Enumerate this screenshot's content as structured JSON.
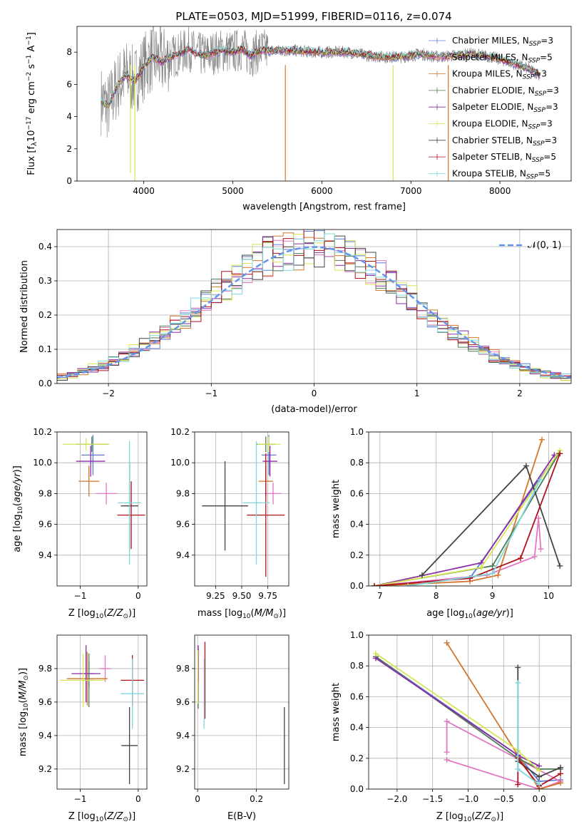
{
  "title": "PLATE=0503, MJD=51999, FIBERID=0116, z=0.074",
  "models": [
    {
      "name": "Chabrier MILES, N",
      "nssp": "3",
      "color": "#5b7fd6"
    },
    {
      "name": "Salpeter MILES, N",
      "nssp": "5",
      "color": "#e377c2"
    },
    {
      "name": "Kroupa MILES, N",
      "nssp": "3",
      "color": "#d4762a"
    },
    {
      "name": "Chabrier ELODIE, N",
      "nssp": "3",
      "color": "#4e7d55"
    },
    {
      "name": "Salpeter ELODIE, N",
      "nssp": "3",
      "color": "#8b2ea3"
    },
    {
      "name": "Kroupa ELODIE, N",
      "nssp": "3",
      "color": "#d8e653"
    },
    {
      "name": "Chabrier STELIB, N",
      "nssp": "3",
      "color": "#444444"
    },
    {
      "name": "Salpeter STELIB, N",
      "nssp": "5",
      "color": "#b0111b"
    },
    {
      "name": "Kroupa STELIB, N",
      "nssp": "5",
      "color": "#7fd8dc"
    }
  ],
  "chart_data": [
    {
      "id": "spectrum",
      "type": "line",
      "xlabel": "wavelength [Angstrom, rest frame]",
      "ylabel": "Flux [f",
      "xlim": [
        3250,
        8800
      ],
      "ylim": [
        0,
        9.6
      ],
      "xticks": [
        4000,
        5000,
        6000,
        7000,
        8000
      ],
      "yticks": [
        0,
        2,
        4,
        6,
        8
      ],
      "data_color": "#7f7f7f",
      "data_points": [
        [
          3520,
          5.0
        ],
        [
          3600,
          4.6
        ],
        [
          3700,
          5.9
        ],
        [
          3800,
          6.6
        ],
        [
          3900,
          6.2
        ],
        [
          4000,
          7.1
        ],
        [
          4100,
          7.7
        ],
        [
          4200,
          7.4
        ],
        [
          4300,
          7.7
        ],
        [
          4400,
          7.9
        ],
        [
          4500,
          8.2
        ],
        [
          4600,
          7.9
        ],
        [
          4700,
          7.8
        ],
        [
          4800,
          8.0
        ],
        [
          4900,
          8.1
        ],
        [
          5000,
          8.0
        ],
        [
          5100,
          8.2
        ],
        [
          5200,
          7.8
        ],
        [
          5300,
          8.1
        ],
        [
          5500,
          8.1
        ],
        [
          5700,
          8.1
        ],
        [
          5900,
          8.0
        ],
        [
          6100,
          8.0
        ],
        [
          6300,
          8.0
        ],
        [
          6500,
          7.8
        ],
        [
          6700,
          7.7
        ],
        [
          6900,
          7.7
        ],
        [
          7100,
          7.9
        ],
        [
          7300,
          7.7
        ],
        [
          7500,
          7.8
        ],
        [
          7700,
          7.9
        ],
        [
          7900,
          7.7
        ],
        [
          8100,
          7.4
        ],
        [
          8300,
          7.0
        ],
        [
          8450,
          6.6
        ]
      ],
      "spikes": [
        [
          3850,
          0.5
        ],
        [
          3900,
          0
        ],
        [
          5590,
          0
        ],
        [
          6800,
          0
        ],
        [
          7420,
          0
        ]
      ]
    },
    {
      "id": "residuals",
      "type": "line",
      "xlabel": "(data-model)/error",
      "ylabel": "Normed distribution",
      "xlim": [
        -2.5,
        2.5
      ],
      "ylim": [
        0,
        0.45
      ],
      "xticks": [
        -2,
        -1,
        0,
        1,
        2
      ],
      "yticks": [
        0,
        0.1,
        0.2,
        0.3,
        0.4
      ],
      "legend": "𝒩(0, 1)",
      "grid": true
    },
    {
      "id": "age_vs_Z",
      "type": "scatter",
      "xlabel": "Z [log",
      "ylabel": "age  [log",
      "xlim": [
        -1.4,
        0.15
      ],
      "ylim": [
        9.2,
        10.2
      ],
      "xticks": [
        -1,
        0
      ],
      "yticks": [
        9.4,
        9.6,
        9.8,
        10.0,
        10.2
      ],
      "points": [
        {
          "x": -0.78,
          "y": 10.05,
          "xerr": 0.2,
          "yerr": 0.13,
          "c": 0
        },
        {
          "x": -0.55,
          "y": 9.8,
          "xerr": 0.18,
          "yerr": 0.07,
          "c": 1
        },
        {
          "x": -0.85,
          "y": 9.88,
          "xerr": 0.18,
          "yerr": 0.1,
          "c": 2
        },
        {
          "x": -0.8,
          "y": 10.12,
          "xerr": 0.28,
          "yerr": 0.05,
          "c": 3
        },
        {
          "x": -0.82,
          "y": 10.01,
          "xerr": 0.25,
          "yerr": 0.1,
          "c": 4
        },
        {
          "x": -0.9,
          "y": 10.12,
          "xerr": 0.4,
          "yerr": 0.04,
          "c": 5
        },
        {
          "x": -0.15,
          "y": 9.72,
          "xerr": 0.15,
          "yerr": 0.29,
          "c": 6
        },
        {
          "x": -0.12,
          "y": 9.66,
          "xerr": 0.24,
          "yerr": 0.22,
          "c": 7
        },
        {
          "x": -0.15,
          "y": 9.74,
          "xerr": 0.2,
          "yerr": 0.4,
          "c": 8
        }
      ]
    },
    {
      "id": "age_vs_mass",
      "type": "scatter",
      "xlabel": "mass [log",
      "ylabel": "",
      "xlim": [
        9.05,
        9.95
      ],
      "ylim": [
        9.2,
        10.2
      ],
      "xticks": [
        9.25,
        9.5,
        9.75
      ],
      "xticklabels": [
        "9.25",
        "9.50",
        "9.75"
      ],
      "yticks": [
        9.4,
        9.6,
        9.8,
        10.0,
        10.2
      ],
      "points": [
        {
          "x": 9.76,
          "y": 10.05,
          "xerr": 0.07,
          "yerr": 0.13,
          "c": 0
        },
        {
          "x": 9.8,
          "y": 9.8,
          "xerr": 0.08,
          "yerr": 0.07,
          "c": 1
        },
        {
          "x": 9.73,
          "y": 9.88,
          "xerr": 0.07,
          "yerr": 0.1,
          "c": 2
        },
        {
          "x": 9.73,
          "y": 10.12,
          "xerr": 0.09,
          "yerr": 0.05,
          "c": 3
        },
        {
          "x": 9.77,
          "y": 10.01,
          "xerr": 0.07,
          "yerr": 0.1,
          "c": 4
        },
        {
          "x": 9.76,
          "y": 10.12,
          "xerr": 0.11,
          "yerr": 0.05,
          "c": 5
        },
        {
          "x": 9.34,
          "y": 9.72,
          "xerr": 0.22,
          "yerr": 0.29,
          "c": 6
        },
        {
          "x": 9.73,
          "y": 9.66,
          "xerr": 0.18,
          "yerr": 0.4,
          "c": 7
        },
        {
          "x": 9.64,
          "y": 9.74,
          "xerr": 0.13,
          "yerr": 0.4,
          "c": 8
        }
      ]
    },
    {
      "id": "weight_vs_age",
      "type": "line",
      "xlabel": "age  [log",
      "ylabel": "mass weight",
      "xlim": [
        6.8,
        10.4
      ],
      "ylim": [
        0,
        1
      ],
      "xticks": [
        7,
        8,
        9,
        10
      ],
      "yticks": [
        0,
        0.2,
        0.4,
        0.6,
        0.8,
        1.0
      ],
      "series": [
        {
          "c": 0,
          "pts": [
            [
              6.9,
              0.0
            ],
            [
              8.6,
              0.05
            ],
            [
              9.75,
              0.65
            ],
            [
              10.18,
              0.86
            ]
          ]
        },
        {
          "c": 1,
          "pts": [
            [
              6.9,
              0.0
            ],
            [
              8.9,
              0.07
            ],
            [
              9.75,
              0.19
            ],
            [
              9.82,
              0.44
            ],
            [
              9.86,
              0.24
            ]
          ]
        },
        {
          "c": 2,
          "pts": [
            [
              6.9,
              0.0
            ],
            [
              8.6,
              0.03
            ],
            [
              9.1,
              0.07
            ],
            [
              9.88,
              0.95
            ]
          ]
        },
        {
          "c": 3,
          "pts": [
            [
              6.9,
              0.0
            ],
            [
              9.0,
              0.13
            ],
            [
              10.18,
              0.86
            ]
          ]
        },
        {
          "c": 4,
          "pts": [
            [
              6.9,
              0.0
            ],
            [
              8.8,
              0.15
            ],
            [
              10.1,
              0.85
            ]
          ]
        },
        {
          "c": 5,
          "pts": [
            [
              6.9,
              0.0
            ],
            [
              8.8,
              0.12
            ],
            [
              10.2,
              0.88
            ]
          ]
        },
        {
          "c": 6,
          "pts": [
            [
              7.75,
              0.07
            ],
            [
              9.6,
              0.78
            ],
            [
              10.2,
              0.13
            ]
          ]
        },
        {
          "c": 7,
          "pts": [
            [
              6.9,
              0.0
            ],
            [
              8.6,
              0.05
            ],
            [
              9.5,
              0.18
            ],
            [
              10.2,
              0.86
            ]
          ]
        },
        {
          "c": 8,
          "pts": [
            [
              7.5,
              0.0
            ],
            [
              9.0,
              0.08
            ],
            [
              9.85,
              0.69
            ]
          ]
        }
      ]
    },
    {
      "id": "mass_vs_Z",
      "type": "scatter",
      "xlabel": "Z [log",
      "ylabel": "mass [log",
      "xlim": [
        -1.4,
        0.15
      ],
      "ylim": [
        9.08,
        10.0
      ],
      "xticks": [
        -1,
        0
      ],
      "yticks": [
        9.2,
        9.4,
        9.6,
        9.8
      ],
      "points": [
        {
          "x": -0.85,
          "y": 9.77,
          "xerr": 0.1,
          "yerr": 0.08,
          "c": 0
        },
        {
          "x": -0.57,
          "y": 9.8,
          "xerr": 0.1,
          "yerr": 0.08,
          "c": 1
        },
        {
          "x": -0.88,
          "y": 9.74,
          "xerr": 0.35,
          "yerr": 0.16,
          "c": 2
        },
        {
          "x": -0.85,
          "y": 9.73,
          "xerr": 0.1,
          "yerr": 0.16,
          "c": 3
        },
        {
          "x": -0.9,
          "y": 9.77,
          "xerr": 0.25,
          "yerr": 0.17,
          "c": 4
        },
        {
          "x": -0.95,
          "y": 9.73,
          "xerr": 0.4,
          "yerr": 0.16,
          "c": 5
        },
        {
          "x": -0.15,
          "y": 9.34,
          "xerr": 0.14,
          "yerr": 0.23,
          "c": 6
        },
        {
          "x": -0.1,
          "y": 9.73,
          "xerr": 0.2,
          "yerr": 0.15,
          "c": 7
        },
        {
          "x": -0.1,
          "y": 9.65,
          "xerr": 0.2,
          "yerr": 0.21,
          "c": 8
        }
      ]
    },
    {
      "id": "mass_vs_EBV",
      "type": "scatter",
      "xlabel": "E(B-V)",
      "ylabel": "",
      "xlim": [
        -0.01,
        0.31
      ],
      "ylim": [
        9.08,
        10.0
      ],
      "xticks": [
        0,
        0.2
      ],
      "yticks": [
        9.2,
        9.4,
        9.6,
        9.8
      ],
      "points": [
        {
          "x": 0.003,
          "y": 9.8,
          "yerr": 0.08,
          "c": 0
        },
        {
          "x": 0.003,
          "y": 9.82,
          "yerr": 0.1,
          "c": 1
        },
        {
          "x": 0.002,
          "y": 9.72,
          "yerr": 0.16,
          "c": 3
        },
        {
          "x": 0.002,
          "y": 9.77,
          "yerr": 0.17,
          "c": 4
        },
        {
          "x": 0.001,
          "y": 9.75,
          "yerr": 0.16,
          "c": 5
        },
        {
          "x": 0.295,
          "y": 9.34,
          "yerr": 0.23,
          "c": 6
        },
        {
          "x": 0.025,
          "y": 9.73,
          "yerr": 0.23,
          "c": 7
        },
        {
          "x": 0.022,
          "y": 9.65,
          "yerr": 0.21,
          "c": 8
        }
      ]
    },
    {
      "id": "weight_vs_Z",
      "type": "line",
      "xlabel": "Z [log",
      "ylabel": "mass weight",
      "xlim": [
        -2.4,
        0.45
      ],
      "ylim": [
        0,
        1
      ],
      "xticks": [
        -2.0,
        -1.5,
        -1.0,
        -0.5,
        0.0
      ],
      "xticklabels": [
        "−2.0",
        "−1.5",
        "−1.0",
        "−0.5",
        "0.0"
      ],
      "yticks": [
        0,
        0.2,
        0.4,
        0.6,
        0.8,
        1.0
      ],
      "series": [
        {
          "c": 0,
          "pts": [
            [
              -2.3,
              0.86
            ],
            [
              -0.3,
              0.22
            ],
            [
              0.0,
              0.05
            ],
            [
              0.3,
              0.06
            ]
          ]
        },
        {
          "c": 1,
          "pts": [
            [
              -1.3,
              0.19
            ],
            [
              0.0,
              0.0
            ],
            [
              0.3,
              0.05
            ],
            [
              -1.3,
              0.44
            ],
            [
              -1.3,
              0.24
            ]
          ]
        },
        {
          "c": 2,
          "pts": [
            [
              -1.3,
              0.95
            ],
            [
              -0.3,
              0.22
            ],
            [
              0.0,
              0.0
            ],
            [
              0.3,
              0.04
            ]
          ]
        },
        {
          "c": 3,
          "pts": [
            [
              -2.3,
              0.86
            ],
            [
              -0.3,
              0.2
            ],
            [
              0.0,
              0.13
            ],
            [
              0.3,
              0.13
            ]
          ]
        },
        {
          "c": 4,
          "pts": [
            [
              -2.3,
              0.85
            ],
            [
              -0.3,
              0.22
            ],
            [
              0.0,
              0.15
            ]
          ]
        },
        {
          "c": 5,
          "pts": [
            [
              -2.3,
              0.88
            ],
            [
              -0.3,
              0.25
            ],
            [
              0.0,
              0.12
            ]
          ]
        },
        {
          "c": 6,
          "pts": [
            [
              -0.3,
              0.79
            ],
            [
              -0.3,
              0.18
            ],
            [
              0.0,
              0.08
            ],
            [
              0.3,
              0.14
            ]
          ]
        },
        {
          "c": 7,
          "pts": [
            [
              -0.3,
              0.03
            ],
            [
              -0.3,
              0.2
            ],
            [
              0.0,
              0.02
            ],
            [
              0.3,
              0.1
            ]
          ]
        },
        {
          "c": 8,
          "pts": [
            [
              -0.3,
              0.69
            ],
            [
              -0.3,
              0.13
            ],
            [
              0.0,
              0.03
            ]
          ]
        }
      ]
    }
  ]
}
